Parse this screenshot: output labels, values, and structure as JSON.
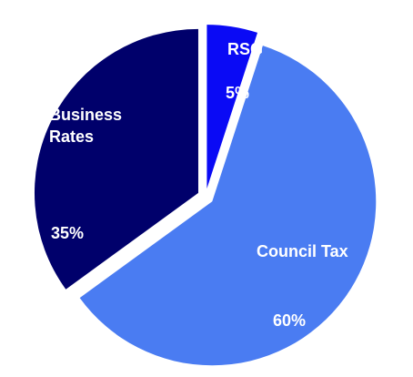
{
  "chart_data": {
    "type": "pie",
    "categories": [
      "RSG",
      "Council Tax",
      "Business Rates"
    ],
    "values": [
      5,
      60,
      35
    ],
    "value_labels": [
      "5%",
      "60%",
      "35%"
    ],
    "colors": [
      "#0a0af5",
      "#4a7cf2",
      "#00006b"
    ]
  }
}
